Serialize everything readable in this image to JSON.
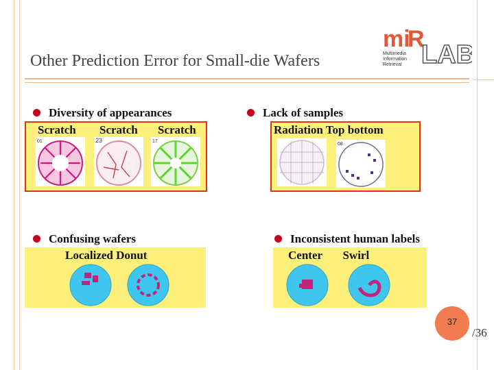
{
  "slide": {
    "title": "Other Prediction Error for Small-die Wafers",
    "page_number": "37",
    "page_total": "/36"
  },
  "logo": {
    "brand": "miR LAB.",
    "line1": "Multimedia",
    "line2": "Information",
    "line3": "Retrieval"
  },
  "sections": {
    "diversity": {
      "bullet": "Diversity of appearances",
      "captions": [
        "Scratch",
        "Scratch",
        "Scratch"
      ],
      "thumb_labels": [
        "01",
        "23",
        "17"
      ]
    },
    "lack": {
      "bullet": "Lack of samples",
      "caption": "Radiation  Top bottom",
      "thumb_label": "08"
    },
    "confusing": {
      "bullet": "Confusing wafers",
      "caption": "Localized   Donut"
    },
    "inconsistent": {
      "bullet": "Inconsistent human labels",
      "caption": "Center       Swirl"
    }
  },
  "colors": {
    "panel_fill": "#fdf07a",
    "panel_border": "#e0331a",
    "bullet_dot": "#c8001e",
    "page_badge": "#f07c4f"
  }
}
